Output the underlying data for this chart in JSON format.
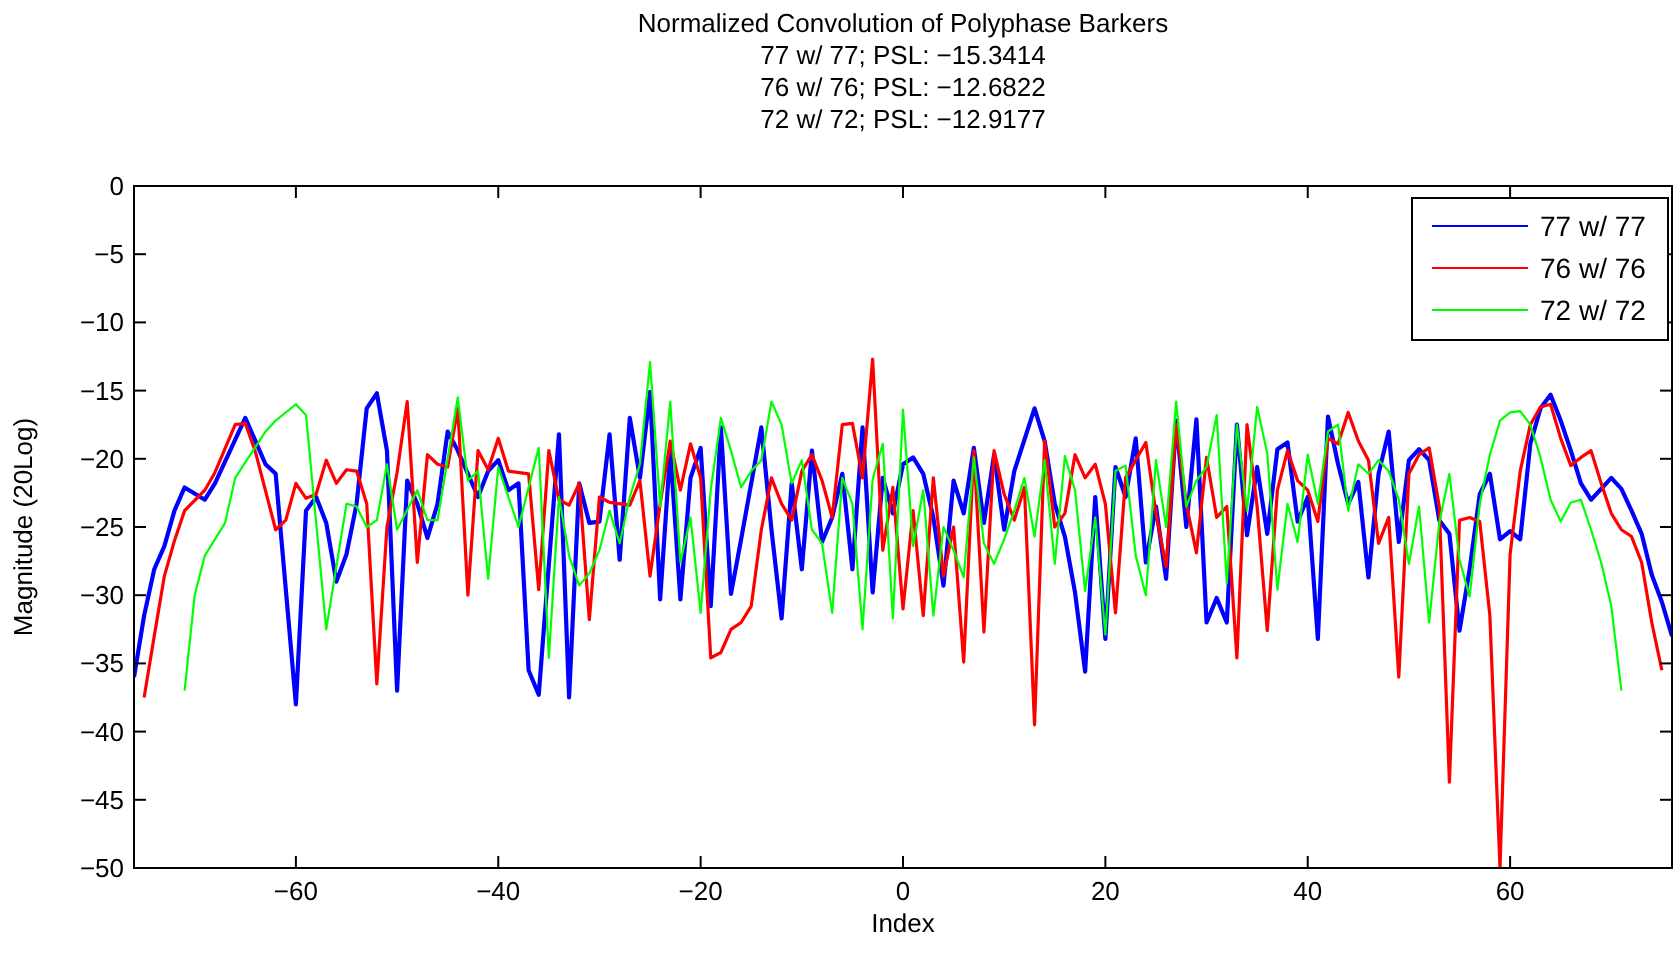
{
  "chart_data": {
    "type": "line",
    "title": "Normalized Convolution of Polyphase Barkers",
    "subtitle": "77 w/ 77; PSL: −15.3414\n76 w/ 76; PSL: −12.6822\n72 w/ 72; PSL: −12.9177",
    "xlabel": "Index",
    "ylabel": "Magnitude (20Log)",
    "xlim": [
      -76,
      76
    ],
    "xticks": [
      {
        "value": -60,
        "label": "−60"
      },
      {
        "value": -40,
        "label": "−40"
      },
      {
        "value": -20,
        "label": "−20"
      },
      0,
      20,
      40,
      60
    ],
    "ylim": [
      -50,
      0
    ],
    "yticks": [
      {
        "value": -50,
        "label": "−50"
      },
      {
        "value": -45,
        "label": "−45"
      },
      {
        "value": -40,
        "label": "−40"
      },
      {
        "value": -35,
        "label": "−35"
      },
      {
        "value": -30,
        "label": "−30"
      },
      {
        "value": -25,
        "label": "−25"
      },
      {
        "value": -20,
        "label": "−20"
      },
      {
        "value": -15,
        "label": "−15"
      },
      {
        "value": -10,
        "label": "−10"
      },
      {
        "value": -5,
        "label": "−5"
      },
      0
    ],
    "grid": false,
    "legend": "top right",
    "marker": "none",
    "line_style": "solid",
    "series": [
      {
        "name": "77 w/ 77",
        "color": "#0000ff",
        "x": [
          -76,
          -75,
          -74,
          -73,
          -72,
          -71,
          -69,
          -68,
          -65,
          -63,
          -62,
          -60,
          -59,
          -58,
          -57,
          -56,
          -55,
          -54,
          -53,
          -52,
          -51,
          -50,
          -49,
          -48,
          -47,
          -46,
          -45,
          -44,
          -42,
          -41,
          -40,
          -39,
          -38,
          -37,
          -36,
          -34,
          -33,
          -32,
          -31,
          -30,
          -29,
          -28,
          -27,
          -26,
          -25,
          -24,
          -23,
          -22,
          -21,
          -20,
          -19,
          -18,
          -17,
          -16,
          -15,
          -14,
          -13,
          -12,
          -11,
          -10,
          -9,
          -8,
          -7,
          -6,
          -5,
          -4,
          -3,
          -2,
          -1,
          0,
          1,
          2,
          3,
          4,
          5,
          6,
          7,
          8,
          9,
          10,
          11,
          13,
          14,
          15,
          16,
          17,
          18,
          19,
          20,
          21,
          22,
          23,
          24,
          25,
          26,
          27,
          28,
          29,
          30,
          31,
          32,
          33,
          34,
          35,
          36,
          37,
          38,
          39,
          40,
          41,
          42,
          43,
          44,
          45,
          46,
          47,
          48,
          49,
          50,
          51,
          52,
          53,
          54,
          55,
          56,
          57,
          58,
          59,
          60,
          61,
          62,
          63,
          64,
          65,
          66,
          67,
          68,
          69,
          70,
          71,
          72,
          73,
          74,
          75,
          76
        ],
        "values": [
          -36,
          -31.5,
          -28.1,
          -26.4,
          -23.8,
          -22.1,
          -23,
          -21.8,
          -17,
          -20.4,
          -21.1,
          -38,
          -23.8,
          -22.8,
          -24.7,
          -29,
          -27,
          -23.3,
          -16.3,
          -15.2,
          -19.4,
          -37,
          -21.6,
          -23.3,
          -25.8,
          -23.3,
          -18,
          -19.4,
          -22.8,
          -20.9,
          -20.1,
          -22.3,
          -21.8,
          -35.5,
          -37.3,
          -18.2,
          -37.5,
          -21.8,
          -24.7,
          -24.6,
          -18.2,
          -27.4,
          -17,
          -21.4,
          -15.1,
          -30.3,
          -19.4,
          -30.3,
          -21.4,
          -19.2,
          -30.8,
          -17.7,
          -29.9,
          -25.9,
          -21.8,
          -17.7,
          -25.2,
          -31.7,
          -21.8,
          -28.1,
          -19.4,
          -26.1,
          -24.3,
          -21.1,
          -28.1,
          -17.7,
          -29.8,
          -21.4,
          -24,
          -20.4,
          -19.9,
          -21.1,
          -24.3,
          -29.3,
          -21.6,
          -24,
          -19.2,
          -24.7,
          -19.7,
          -25.2,
          -20.9,
          -16.3,
          -18.7,
          -23.3,
          -25.7,
          -29.8,
          -35.6,
          -22.8,
          -33.2,
          -20.6,
          -22.8,
          -18.5,
          -27.6,
          -23.5,
          -28.8,
          -17.2,
          -25,
          -17.1,
          -32,
          -30.2,
          -32,
          -17.5,
          -25.6,
          -20.6,
          -25.5,
          -19.3,
          -18.8,
          -24.6,
          -22.8,
          -33.2,
          -16.9,
          -20.4,
          -23.3,
          -21.7,
          -28.7,
          -21.1,
          -18,
          -26.1,
          -20.1,
          -19.3,
          -20.1,
          -24.5,
          -25.5,
          -32.6,
          -28.1,
          -22.6,
          -21.1,
          -25.9,
          -25.3,
          -25.9,
          -18.9,
          -16.3,
          -15.3,
          -17.2,
          -19.4,
          -21.8,
          -23,
          -22.2,
          -21.4,
          -22.2,
          -23.8,
          -25.5,
          -28.5,
          -30.5,
          -33
        ]
      },
      {
        "name": "76 w/ 76",
        "color": "#ff0000",
        "x": [
          -75,
          -74,
          -73,
          -72,
          -71,
          -69,
          -68,
          -66,
          -65,
          -64,
          -62,
          -61,
          -60,
          -59,
          -58,
          -57,
          -56,
          -55,
          -54,
          -53,
          -52,
          -51,
          -50,
          -49,
          -48,
          -47,
          -46,
          -45,
          -44,
          -43,
          -42,
          -41,
          -40,
          -39,
          -37,
          -36,
          -35,
          -34,
          -33,
          -32,
          -31,
          -30,
          -29,
          -27,
          -26,
          -25,
          -24,
          -23,
          -22,
          -21,
          -20,
          -19,
          -18,
          -17,
          -16,
          -15,
          -14,
          -13,
          -12,
          -11,
          -10,
          -9,
          -8,
          -7,
          -6,
          -5,
          -4,
          -3,
          -2,
          -1,
          0,
          1,
          2,
          3,
          4,
          5,
          6,
          7,
          8,
          9,
          10,
          11,
          12,
          13,
          14,
          15,
          16,
          17,
          18,
          19,
          20,
          21,
          22,
          23,
          24,
          25,
          26,
          27,
          28,
          29,
          30,
          31,
          32,
          33,
          34,
          35,
          36,
          37,
          38,
          39,
          40,
          41,
          42,
          43,
          44,
          45,
          46,
          47,
          48,
          49,
          50,
          51,
          52,
          53,
          54,
          55,
          56,
          57,
          58,
          59,
          60,
          61,
          62,
          63,
          64,
          65,
          66,
          67,
          68,
          69,
          70,
          71,
          72,
          73,
          74,
          75
        ],
        "values": [
          -37.5,
          -33,
          -28.6,
          -26,
          -23.8,
          -22.3,
          -21,
          -17.5,
          -17.4,
          -19.5,
          -25.2,
          -24.5,
          -21.8,
          -22.9,
          -22.6,
          -20.1,
          -21.8,
          -20.8,
          -20.9,
          -23.3,
          -36.5,
          -25,
          -21,
          -15.8,
          -27.6,
          -19.7,
          -20.4,
          -20.6,
          -16.3,
          -30,
          -19.4,
          -20.8,
          -18.5,
          -20.9,
          -21.1,
          -29.6,
          -19.4,
          -23,
          -23.4,
          -21.8,
          -31.8,
          -22.8,
          -23.2,
          -23.4,
          -21.6,
          -28.6,
          -23.3,
          -18.7,
          -22.3,
          -18.9,
          -21.4,
          -34.6,
          -34.2,
          -32.5,
          -32,
          -30.8,
          -25.2,
          -21.4,
          -23.3,
          -24.5,
          -20.9,
          -19.7,
          -21.6,
          -24.3,
          -17.5,
          -17.4,
          -21.4,
          -12.7,
          -26.7,
          -22.1,
          -31,
          -23.8,
          -31.5,
          -21.4,
          -28.6,
          -25,
          -34.9,
          -19.4,
          -32.7,
          -19.4,
          -22.6,
          -24.5,
          -22.1,
          -39.5,
          -18.7,
          -25,
          -24,
          -19.7,
          -21.4,
          -20.4,
          -23.3,
          -31.3,
          -21.4,
          -20.1,
          -18.8,
          -24,
          -27.9,
          -17.5,
          -23.3,
          -26.9,
          -19.9,
          -24.3,
          -23.5,
          -34.6,
          -17.5,
          -23.5,
          -32.6,
          -22.3,
          -19.4,
          -21.6,
          -22.3,
          -24.6,
          -18.5,
          -18.9,
          -16.6,
          -18.7,
          -20.1,
          -26.2,
          -24.3,
          -36,
          -21.1,
          -19.7,
          -19.2,
          -23.5,
          -43.7,
          -24.5,
          -24.3,
          -24.6,
          -31.5,
          -50,
          -27,
          -20.9,
          -17.5,
          -16.2,
          -16,
          -18.5,
          -20.5,
          -19.9,
          -19.4,
          -21.8,
          -24,
          -25.2,
          -25.7,
          -27.6,
          -32,
          -35.5
        ]
      },
      {
        "name": "72 w/ 72",
        "color": "#00ff00",
        "x": [
          -71,
          -70,
          -69,
          -67,
          -66,
          -63,
          -62,
          -60,
          -59,
          -57,
          -55,
          -54,
          -53,
          -52,
          -51,
          -50,
          -48,
          -47,
          -46,
          -44,
          -43,
          -42,
          -41,
          -40,
          -38,
          -36,
          -35,
          -34,
          -33,
          -32,
          -31,
          -30,
          -29,
          -28,
          -27,
          -26,
          -25,
          -24,
          -23,
          -22,
          -21,
          -20,
          -19,
          -18,
          -17,
          -16,
          -15,
          -14,
          -13,
          -12,
          -11,
          -10,
          -9,
          -8,
          -7,
          -6,
          -5,
          -4,
          -3,
          -2,
          -1,
          0,
          1,
          2,
          3,
          4,
          5,
          6,
          7,
          8,
          9,
          10,
          11,
          12,
          13,
          14,
          15,
          16,
          17,
          18,
          19,
          20,
          21,
          22,
          23,
          24,
          25,
          26,
          27,
          28,
          29,
          30,
          31,
          32,
          33,
          34,
          35,
          36,
          37,
          38,
          39,
          40,
          41,
          42,
          43,
          44,
          45,
          46,
          47,
          48,
          49,
          50,
          51,
          52,
          53,
          54,
          55,
          56,
          57,
          58,
          59,
          60,
          61,
          62,
          63,
          64,
          65,
          66,
          67,
          68,
          69,
          70,
          71
        ],
        "values": [
          -37,
          -30,
          -27.1,
          -24.7,
          -21.4,
          -18,
          -17.2,
          -16,
          -16.8,
          -32.5,
          -23.3,
          -23.5,
          -25,
          -24.5,
          -20.4,
          -25.2,
          -22.3,
          -24.5,
          -24.5,
          -15.5,
          -21.6,
          -20.9,
          -28.8,
          -20.6,
          -25,
          -19.2,
          -34.6,
          -22.8,
          -27.1,
          -29.3,
          -28.4,
          -26.7,
          -23.8,
          -26.2,
          -22.8,
          -20.4,
          -12.9,
          -23.5,
          -15.8,
          -27.6,
          -24.3,
          -31.3,
          -22.3,
          -17,
          -19.4,
          -22.1,
          -20.9,
          -20.1,
          -15.8,
          -17.5,
          -21.8,
          -20.1,
          -25.2,
          -26.2,
          -31.3,
          -21.4,
          -23.3,
          -32.5,
          -21.5,
          -18.9,
          -31.7,
          -16.4,
          -26.4,
          -22.3,
          -31.5,
          -25,
          -26.7,
          -28.7,
          -19.9,
          -26.2,
          -27.7,
          -25.9,
          -23.8,
          -21.4,
          -25.7,
          -20.1,
          -27.7,
          -19.8,
          -22.3,
          -29.7,
          -24.3,
          -32.9,
          -20.9,
          -20.5,
          -27.1,
          -30,
          -20.1,
          -25,
          -15.8,
          -23.5,
          -21.6,
          -20.6,
          -16.8,
          -29.1,
          -17.5,
          -23.8,
          -16.2,
          -19.6,
          -29.6,
          -23.3,
          -26.1,
          -19.7,
          -23.3,
          -18,
          -17.5,
          -23.8,
          -20.4,
          -21.1,
          -20.1,
          -20.9,
          -23,
          -27.7,
          -23.5,
          -32,
          -24.7,
          -21.1,
          -27.4,
          -30.1,
          -23.3,
          -19.7,
          -17.2,
          -16.6,
          -16.5,
          -17.5,
          -19.9,
          -23,
          -24.6,
          -23.2,
          -23,
          -25.2,
          -27.6,
          -30.8,
          -37
        ]
      }
    ]
  }
}
